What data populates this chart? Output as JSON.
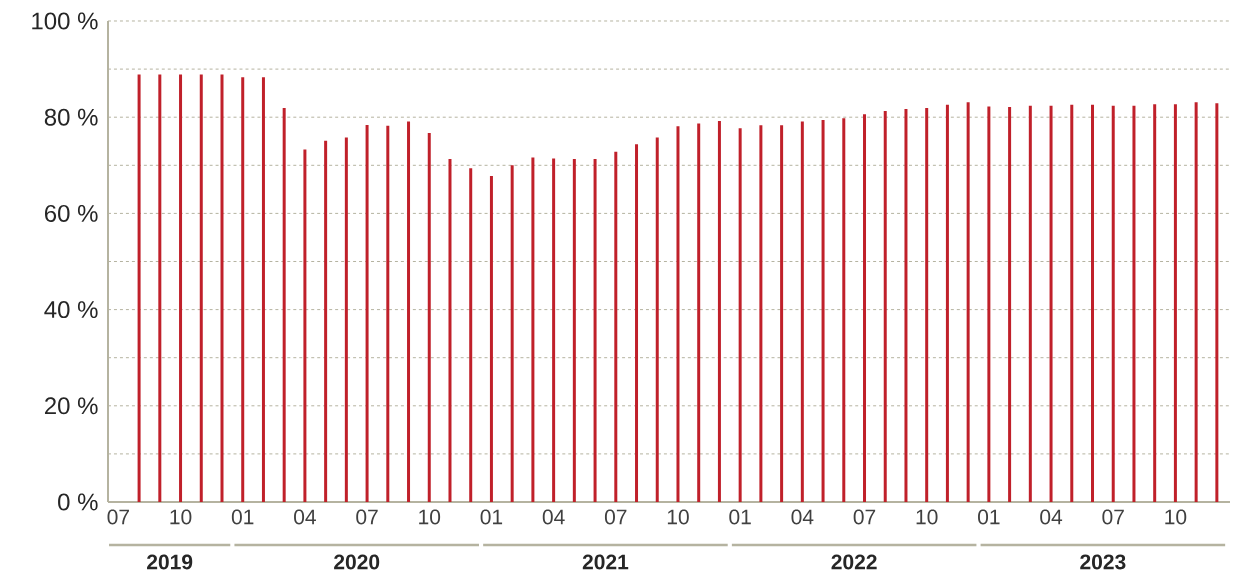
{
  "chart_data": {
    "type": "bar",
    "color": "#c0202a",
    "x": [
      "2019-08",
      "2019-09",
      "2019-10",
      "2019-11",
      "2019-12",
      "2020-01",
      "2020-02",
      "2020-03",
      "2020-04",
      "2020-05",
      "2020-06",
      "2020-07",
      "2020-08",
      "2020-09",
      "2020-10",
      "2020-11",
      "2020-12",
      "2021-01",
      "2021-02",
      "2021-03",
      "2021-04",
      "2021-05",
      "2021-06",
      "2021-07",
      "2021-08",
      "2021-09",
      "2021-10",
      "2021-11",
      "2021-12",
      "2022-01",
      "2022-02",
      "2022-03",
      "2022-04",
      "2022-05",
      "2022-06",
      "2022-07",
      "2022-08",
      "2022-09",
      "2022-10",
      "2022-11",
      "2022-12",
      "2023-01",
      "2023-02",
      "2023-03",
      "2023-04",
      "2023-05",
      "2023-06",
      "2023-07",
      "2023-08",
      "2023-09",
      "2023-10",
      "2023-11",
      "2023-12"
    ],
    "values": [
      88.9,
      88.9,
      88.9,
      88.9,
      88.9,
      88.3,
      88.3,
      81.9,
      73.3,
      75.1,
      75.8,
      78.4,
      78.2,
      79.1,
      76.7,
      71.3,
      69.4,
      67.8,
      70.0,
      71.6,
      71.4,
      71.3,
      71.3,
      72.8,
      74.4,
      75.8,
      78.1,
      78.7,
      79.2,
      77.7,
      78.3,
      78.3,
      79.1,
      79.4,
      79.8,
      80.6,
      81.3,
      81.7,
      81.9,
      82.6,
      83.1,
      82.2,
      82.1,
      82.4,
      82.4,
      82.6,
      82.6,
      82.4,
      82.4,
      82.7,
      82.7,
      83.1,
      82.9
    ],
    "xlim": [
      "2019-06-16",
      "2023-12-20"
    ],
    "xticks": [
      {
        "value": "2019-07",
        "label": "07"
      },
      {
        "value": "2019-10",
        "label": "10"
      },
      {
        "value": "2020-01",
        "label": "01"
      },
      {
        "value": "2020-04",
        "label": "04"
      },
      {
        "value": "2020-07",
        "label": "07"
      },
      {
        "value": "2020-10",
        "label": "10"
      },
      {
        "value": "2021-01",
        "label": "01"
      },
      {
        "value": "2021-04",
        "label": "04"
      },
      {
        "value": "2021-07",
        "label": "07"
      },
      {
        "value": "2021-10",
        "label": "10"
      },
      {
        "value": "2022-01",
        "label": "01"
      },
      {
        "value": "2022-04",
        "label": "04"
      },
      {
        "value": "2022-07",
        "label": "07"
      },
      {
        "value": "2022-10",
        "label": "10"
      },
      {
        "value": "2023-01",
        "label": "01"
      },
      {
        "value": "2023-04",
        "label": "04"
      },
      {
        "value": "2023-07",
        "label": "07"
      },
      {
        "value": "2023-10",
        "label": "10"
      }
    ],
    "ylim": [
      0,
      100
    ],
    "yticks": [
      {
        "value": 0,
        "label": "0 %"
      },
      {
        "value": 10,
        "label": null
      },
      {
        "value": 20,
        "label": "20 %"
      },
      {
        "value": 30,
        "label": null
      },
      {
        "value": 40,
        "label": "40 %"
      },
      {
        "value": 50,
        "label": null
      },
      {
        "value": 60,
        "label": "60 %"
      },
      {
        "value": 70,
        "label": null
      },
      {
        "value": 80,
        "label": "80 %"
      },
      {
        "value": 90,
        "label": null
      },
      {
        "value": 100,
        "label": "100 %"
      }
    ],
    "grid": "y",
    "annotations": [
      "2019",
      "2020",
      "2021",
      "2022",
      "2023"
    ]
  }
}
